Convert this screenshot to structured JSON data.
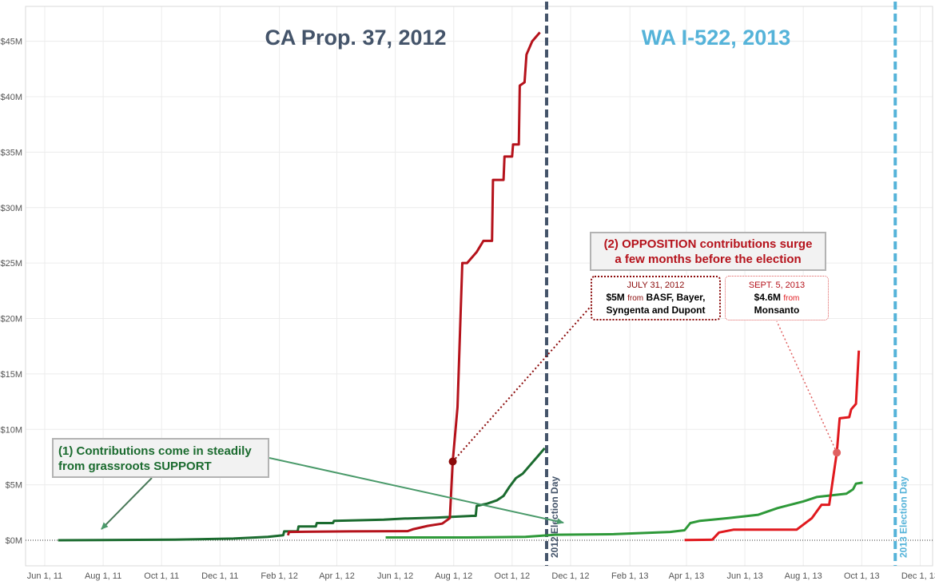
{
  "colors": {
    "ca_oppose": "#b5121b",
    "wa_oppose": "#e0191e",
    "ca_support": "#1b6b2f",
    "wa_support": "#2e9939",
    "ca_line": "#44546a",
    "wa_line": "#55b3d9",
    "grid": "#ececec",
    "pt_ca": "#8b0a0a",
    "pt_wa": "#e06060"
  },
  "chart_data": {
    "type": "line",
    "title_ca": "CA Prop. 37, 2012",
    "title_wa": "WA I-522, 2013",
    "xlabel": "",
    "ylabel": "",
    "x_range": [
      "2011-05-12",
      "2013-12-14"
    ],
    "ylim": [
      0,
      46.5
    ],
    "y_unit": "million USD",
    "y_ticks": [
      0,
      5,
      10,
      15,
      20,
      25,
      30,
      35,
      40,
      45
    ],
    "y_tick_labels": [
      "$0M",
      "$5M",
      "$10M",
      "$15M",
      "$20M",
      "$25M",
      "$30M",
      "$35M",
      "$40M",
      "$45M"
    ],
    "x_ticks": [
      "2011-06-01",
      "2011-08-01",
      "2011-10-01",
      "2011-12-01",
      "2012-02-01",
      "2012-04-01",
      "2012-06-01",
      "2012-08-01",
      "2012-10-01",
      "2012-12-01",
      "2013-02-01",
      "2013-04-01",
      "2013-06-01",
      "2013-08-01",
      "2013-10-01",
      "2013-12-01"
    ],
    "x_tick_labels": [
      "Jun 1, 11",
      "Aug 1, 11",
      "Oct 1, 11",
      "Dec 1, 11",
      "Feb 1, 12",
      "Apr 1, 12",
      "Jun 1, 12",
      "Aug 1, 12",
      "Oct 1, 12",
      "Dec 1, 12",
      "Feb 1, 13",
      "Apr 1, 13",
      "Jun 1, 13",
      "Aug 1, 13",
      "Oct 1, 13",
      "Dec 1, 13"
    ],
    "reference_lines": [
      {
        "date": "2012-11-06",
        "label": "2012 Election Day"
      },
      {
        "date": "2013-11-05",
        "label": "2013 Election Day"
      }
    ],
    "series": [
      {
        "name": "CA Prop. 37 Support",
        "color_key": "ca_support",
        "step": true,
        "points": [
          [
            "2011-06-15",
            0
          ],
          [
            "2011-10-15",
            0.05
          ],
          [
            "2011-12-15",
            0.15
          ],
          [
            "2012-01-20",
            0.3
          ],
          [
            "2012-02-05",
            0.45
          ],
          [
            "2012-02-06",
            0.8
          ],
          [
            "2012-02-20",
            0.8
          ],
          [
            "2012-02-21",
            1.25
          ],
          [
            "2012-03-10",
            1.25
          ],
          [
            "2012-03-11",
            1.55
          ],
          [
            "2012-03-28",
            1.55
          ],
          [
            "2012-03-29",
            1.75
          ],
          [
            "2012-05-20",
            1.85
          ],
          [
            "2012-06-10",
            1.95
          ],
          [
            "2012-07-15",
            2.05
          ],
          [
            "2012-08-20",
            2.2
          ],
          [
            "2012-08-24",
            2.2
          ],
          [
            "2012-08-25",
            3.1
          ],
          [
            "2012-09-05",
            3.3
          ],
          [
            "2012-09-15",
            3.6
          ],
          [
            "2012-09-22",
            4.0
          ],
          [
            "2012-09-28",
            4.8
          ],
          [
            "2012-10-05",
            5.6
          ],
          [
            "2012-10-12",
            6.0
          ],
          [
            "2012-10-20",
            6.8
          ],
          [
            "2012-10-28",
            7.6
          ],
          [
            "2012-11-04",
            8.3
          ]
        ]
      },
      {
        "name": "CA Prop. 37 Opposition",
        "color_key": "ca_oppose",
        "step": true,
        "points": [
          [
            "2012-02-10",
            0.45
          ],
          [
            "2012-02-11",
            0.75
          ],
          [
            "2012-04-15",
            0.8
          ],
          [
            "2012-06-14",
            0.82
          ],
          [
            "2012-06-20",
            1.0
          ],
          [
            "2012-07-05",
            1.3
          ],
          [
            "2012-07-20",
            1.5
          ],
          [
            "2012-07-28",
            2.0
          ],
          [
            "2012-07-31",
            7.1
          ],
          [
            "2012-08-05",
            12.0
          ],
          [
            "2012-08-10",
            25.0
          ],
          [
            "2012-08-15",
            25.0
          ],
          [
            "2012-08-25",
            26.0
          ],
          [
            "2012-09-01",
            27.0
          ],
          [
            "2012-09-10",
            27.0
          ],
          [
            "2012-09-11",
            32.5
          ],
          [
            "2012-09-22",
            32.5
          ],
          [
            "2012-09-23",
            34.6
          ],
          [
            "2012-10-01",
            34.6
          ],
          [
            "2012-10-02",
            35.7
          ],
          [
            "2012-10-08",
            35.7
          ],
          [
            "2012-10-09",
            41.0
          ],
          [
            "2012-10-14",
            41.3
          ],
          [
            "2012-10-16",
            43.8
          ],
          [
            "2012-10-22",
            45.0
          ],
          [
            "2012-10-30",
            45.8
          ]
        ]
      },
      {
        "name": "WA I-522 Support",
        "color_key": "wa_support",
        "step": true,
        "points": [
          [
            "2012-05-22",
            0.25
          ],
          [
            "2012-08-15",
            0.25
          ],
          [
            "2012-10-15",
            0.3
          ],
          [
            "2012-11-15",
            0.5
          ],
          [
            "2013-01-15",
            0.55
          ],
          [
            "2013-03-15",
            0.75
          ],
          [
            "2013-03-30",
            0.9
          ],
          [
            "2013-04-05",
            1.55
          ],
          [
            "2013-04-15",
            1.75
          ],
          [
            "2013-05-15",
            2.0
          ],
          [
            "2013-06-15",
            2.3
          ],
          [
            "2013-07-05",
            2.9
          ],
          [
            "2013-08-01",
            3.5
          ],
          [
            "2013-08-15",
            3.9
          ],
          [
            "2013-09-15",
            4.2
          ],
          [
            "2013-09-22",
            4.6
          ],
          [
            "2013-09-25",
            5.1
          ],
          [
            "2013-10-02",
            5.2
          ]
        ]
      },
      {
        "name": "WA I-522 Opposition",
        "color_key": "wa_oppose",
        "step": true,
        "points": [
          [
            "2013-03-30",
            0.02
          ],
          [
            "2013-04-28",
            0.05
          ],
          [
            "2013-05-05",
            0.7
          ],
          [
            "2013-05-20",
            0.95
          ],
          [
            "2013-06-15",
            0.95
          ],
          [
            "2013-07-25",
            0.95
          ],
          [
            "2013-08-10",
            2.0
          ],
          [
            "2013-08-20",
            3.2
          ],
          [
            "2013-08-28",
            3.2
          ],
          [
            "2013-09-05",
            7.9
          ],
          [
            "2013-09-08",
            11.0
          ],
          [
            "2013-09-18",
            11.1
          ],
          [
            "2013-09-20",
            11.8
          ],
          [
            "2013-09-25",
            12.3
          ],
          [
            "2013-09-28",
            17.1
          ]
        ]
      }
    ],
    "highlight_points": [
      {
        "date": "2012-07-31",
        "value": 7.1,
        "color_key": "pt_ca"
      },
      {
        "date": "2013-09-05",
        "value": 7.9,
        "color_key": "pt_wa"
      }
    ]
  },
  "annotations": {
    "support": {
      "line1": "(1) Contributions come in steadily",
      "line2": "from grassroots SUPPORT"
    },
    "opposition": {
      "line1": "(2) OPPOSITION contributions surge",
      "line2": "a few months before the election"
    },
    "ca_donation": {
      "date": "JULY 31, 2012",
      "amount": "$5M",
      "from_word": "from",
      "donors_a": "BASF, Bayer,",
      "donors_b": "Syngenta and Dupont"
    },
    "wa_donation": {
      "date": "SEPT. 5, 2013",
      "amount": "$4.6M",
      "from_word": "from",
      "donors": "Monsanto"
    }
  }
}
